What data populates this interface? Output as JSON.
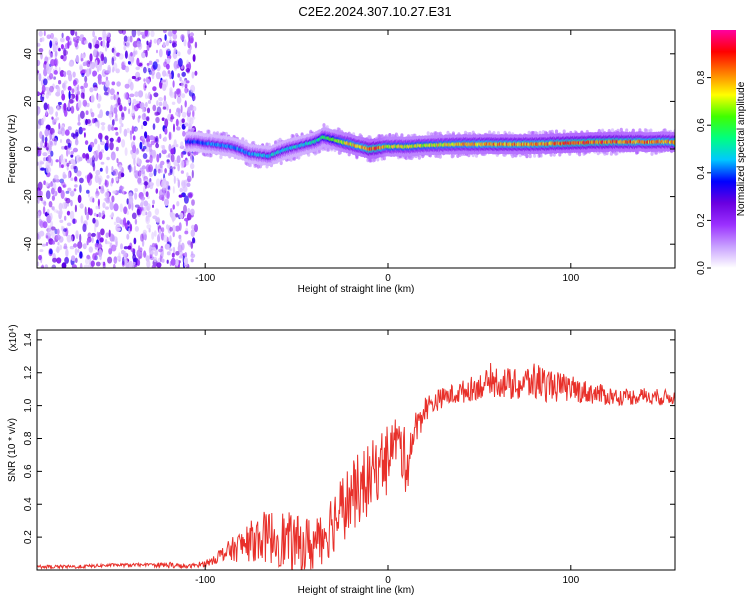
{
  "title": "C2E2.2024.307.10.27.E31",
  "chart_data": [
    {
      "type": "heatmap",
      "xlabel": "Height of straight line (km)",
      "ylabel": "Frequency (Hz)",
      "xlim": [
        -192,
        157
      ],
      "ylim": [
        -50,
        50
      ],
      "x_ticks": [
        -100,
        0,
        100
      ],
      "y_ticks": [
        -40,
        -20,
        0,
        20,
        40
      ],
      "colorbar": {
        "label": "Normalized spectral amplitude",
        "range": [
          0,
          1
        ],
        "ticks": [
          0.0,
          0.2,
          0.4,
          0.6,
          0.8
        ],
        "colormap": [
          "#ffffff",
          "#c8a0ff",
          "#9b30ff",
          "#6a00e0",
          "#0000ff",
          "#00c8ff",
          "#00ff80",
          "#40ff00",
          "#ffff00",
          "#ff8000",
          "#ff0000",
          "#ff00a0"
        ]
      },
      "ridge": {
        "x": [
          -105,
          -95,
          -85,
          -75,
          -65,
          -55,
          -45,
          -40,
          -35,
          -30,
          -25,
          -20,
          -15,
          -10,
          -5,
          0,
          10,
          20,
          40,
          60,
          80,
          100,
          120,
          140,
          157
        ],
        "freq": [
          3,
          2,
          1,
          -2,
          -3,
          0,
          2,
          3,
          5,
          4,
          3,
          2,
          1,
          0,
          0.5,
          1,
          1,
          1.5,
          2,
          2,
          2,
          2.5,
          3,
          3,
          3
        ],
        "amplitude": [
          0.4,
          0.45,
          0.45,
          0.45,
          0.5,
          0.5,
          0.5,
          0.55,
          0.6,
          0.65,
          0.75,
          0.8,
          0.8,
          0.9,
          0.9,
          0.75,
          0.75,
          0.75,
          0.8,
          0.85,
          0.85,
          0.9,
          0.9,
          0.85,
          0.85
        ]
      },
      "noisy_region_x": [
        -192,
        -105
      ]
    },
    {
      "type": "line",
      "xlabel": "Height of straight line (km)",
      "ylabel": "SNR (10 * v/v)",
      "y_multiplier": "(x10⁴)",
      "xlim": [
        -192,
        157
      ],
      "ylim": [
        0,
        1.46
      ],
      "x_ticks": [
        -100,
        0,
        100
      ],
      "y_ticks": [
        0.2,
        0.4,
        0.6,
        0.8,
        1.0,
        1.2,
        1.4
      ],
      "series": [
        {
          "color": "#e8302a",
          "x": [
            -192,
            -170,
            -150,
            -130,
            -120,
            -110,
            -100,
            -90,
            -80,
            -70,
            -60,
            -50,
            -40,
            -30,
            -20,
            -10,
            0,
            5,
            10,
            15,
            20,
            25,
            30,
            40,
            50,
            60,
            70,
            80,
            90,
            100,
            110,
            120,
            130,
            140,
            150,
            157
          ],
          "y": [
            0.02,
            0.02,
            0.03,
            0.03,
            0.03,
            0.02,
            0.04,
            0.1,
            0.15,
            0.2,
            0.2,
            0.15,
            0.15,
            0.3,
            0.45,
            0.55,
            0.72,
            0.8,
            0.65,
            0.85,
            0.98,
            1.02,
            1.05,
            1.08,
            1.12,
            1.15,
            1.12,
            1.15,
            1.12,
            1.1,
            1.08,
            1.06,
            1.05,
            1.06,
            1.05,
            1.05
          ],
          "noise_amplitude": [
            0.01,
            0.01,
            0.01,
            0.01,
            0.02,
            0.01,
            0.02,
            0.05,
            0.1,
            0.15,
            0.18,
            0.18,
            0.18,
            0.2,
            0.22,
            0.22,
            0.18,
            0.15,
            0.2,
            0.12,
            0.08,
            0.07,
            0.06,
            0.07,
            0.08,
            0.1,
            0.1,
            0.12,
            0.1,
            0.08,
            0.07,
            0.06,
            0.05,
            0.05,
            0.05,
            0.04
          ]
        }
      ]
    }
  ]
}
